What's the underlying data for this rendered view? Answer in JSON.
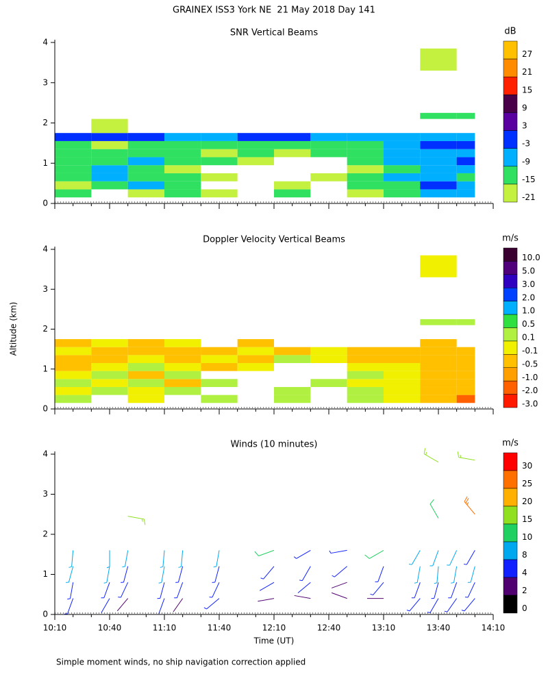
{
  "title": "GRAINEX ISS3 York NE  21 May 2018 Day 141",
  "y_label": "Altitude (km)",
  "footnote": "Simple moment winds, no ship navigation correction applied",
  "chart_data": [
    {
      "type": "heatmap",
      "title": "SNR Vertical Beams",
      "ylim": [
        0,
        4
      ],
      "yticks": [
        0,
        1,
        2,
        3,
        4
      ],
      "x_edges": [
        "10:10",
        "10:30",
        "10:50",
        "11:10",
        "11:30",
        "11:50",
        "12:10",
        "12:30",
        "12:50",
        "13:10",
        "13:30",
        "13:50",
        "14:00"
      ],
      "y_edges": [
        0.15,
        0.35,
        0.55,
        0.75,
        0.95,
        1.15,
        1.35,
        1.55,
        1.75,
        2.1,
        2.25,
        3.3,
        3.85
      ],
      "z": [
        [
          -15,
          null,
          -18,
          -15,
          -18,
          null,
          -15,
          null,
          -18,
          -15,
          -9,
          -9
        ],
        [
          -18,
          -12,
          -9,
          -15,
          null,
          null,
          -18,
          null,
          -15,
          -12,
          -3,
          -9
        ],
        [
          -15,
          -9,
          -12,
          -15,
          -18,
          null,
          null,
          -18,
          -15,
          -9,
          -9,
          -12
        ],
        [
          -12,
          -9,
          -15,
          -18,
          null,
          null,
          null,
          null,
          -18,
          -12,
          -9,
          -9
        ],
        [
          -15,
          -12,
          -9,
          -12,
          -15,
          -18,
          null,
          null,
          -15,
          -9,
          -9,
          -3
        ],
        [
          -12,
          -15,
          -12,
          -15,
          -18,
          -15,
          -18,
          -15,
          -12,
          -9,
          -9,
          -9
        ],
        [
          -15,
          -18,
          -15,
          -12,
          -12,
          -15,
          -12,
          -15,
          -12,
          -9,
          -3,
          -3
        ],
        [
          -3,
          -3,
          -3,
          -9,
          -9,
          -3,
          -3,
          -9,
          -9,
          -9,
          -9,
          -9
        ],
        [
          null,
          -21,
          null,
          null,
          null,
          null,
          null,
          null,
          null,
          null,
          null,
          null
        ],
        [
          null,
          null,
          null,
          null,
          null,
          null,
          null,
          null,
          null,
          null,
          -15,
          -15
        ],
        [
          null,
          null,
          null,
          null,
          null,
          null,
          null,
          null,
          null,
          null,
          null,
          null
        ],
        [
          null,
          null,
          null,
          null,
          null,
          null,
          null,
          null,
          null,
          null,
          -18,
          null
        ]
      ],
      "colorbar": {
        "label": "dB",
        "ticks": [
          27,
          21,
          15,
          9,
          3,
          -3,
          -9,
          -15,
          -21
        ],
        "colors": [
          "#ffc000",
          "#ff8c00",
          "#ff2000",
          "#4a0048",
          "#5a00a0",
          "#0030ff",
          "#00b0ff",
          "#30e060",
          "#c4f040"
        ]
      }
    },
    {
      "type": "heatmap",
      "title": "Doppler Velocity Vertical Beams",
      "ylim": [
        0,
        4
      ],
      "yticks": [
        0,
        1,
        2,
        3,
        4
      ],
      "x_edges": [
        "10:10",
        "10:30",
        "10:50",
        "11:10",
        "11:30",
        "11:50",
        "12:10",
        "12:30",
        "12:50",
        "13:10",
        "13:30",
        "13:50",
        "14:00"
      ],
      "y_edges": [
        0.15,
        0.35,
        0.55,
        0.75,
        0.95,
        1.15,
        1.35,
        1.55,
        1.75,
        2.1,
        2.25,
        3.3,
        3.85
      ],
      "z": [
        [
          0.1,
          null,
          -0.1,
          null,
          0.1,
          null,
          0.1,
          null,
          0.1,
          -0.1,
          -0.5,
          -1.5
        ],
        [
          -0.1,
          0.1,
          -0.1,
          0.1,
          null,
          null,
          0.1,
          null,
          0.1,
          -0.1,
          -0.5,
          -0.5
        ],
        [
          0.1,
          -0.1,
          0.1,
          -0.3,
          0.1,
          null,
          null,
          0.1,
          -0.1,
          -0.1,
          -0.5,
          -0.5
        ],
        [
          -0.1,
          0.1,
          -0.3,
          0.1,
          null,
          null,
          null,
          null,
          0.1,
          -0.1,
          -0.3,
          -0.5
        ],
        [
          -0.3,
          -0.1,
          0.1,
          -0.1,
          -0.3,
          -0.1,
          null,
          null,
          -0.1,
          -0.1,
          -0.5,
          -0.3
        ],
        [
          -0.3,
          -0.5,
          -0.1,
          -0.3,
          -0.1,
          -0.3,
          0.1,
          -0.1,
          -0.3,
          -0.3,
          -0.5,
          -0.5
        ],
        [
          -0.1,
          -0.3,
          -0.5,
          -0.3,
          -0.3,
          -0.1,
          -0.3,
          -0.1,
          -0.3,
          -0.5,
          -0.5,
          -0.3
        ],
        [
          -0.3,
          -0.1,
          -0.3,
          -0.1,
          null,
          -0.3,
          null,
          null,
          null,
          null,
          -0.5,
          null
        ],
        [
          null,
          null,
          null,
          null,
          null,
          null,
          null,
          null,
          null,
          null,
          null,
          null
        ],
        [
          null,
          null,
          null,
          null,
          null,
          null,
          null,
          null,
          null,
          null,
          0.1,
          0.1
        ],
        [
          null,
          null,
          null,
          null,
          null,
          null,
          null,
          null,
          null,
          null,
          null,
          null
        ],
        [
          null,
          null,
          null,
          null,
          null,
          null,
          null,
          null,
          null,
          null,
          -0.1,
          null
        ]
      ],
      "colorbar": {
        "label": "m/s",
        "ticks": [
          {
            "value": 10,
            "label": "10.0"
          },
          {
            "value": 5,
            "label": "5.0"
          },
          {
            "value": 3,
            "label": "3.0"
          },
          {
            "value": 2,
            "label": "2.0"
          },
          {
            "value": 1,
            "label": "1.0"
          },
          {
            "value": 0.5,
            "label": "0.5"
          },
          {
            "value": 0.1,
            "label": "0.1"
          },
          {
            "value": -0.1,
            "label": "-0.1"
          },
          {
            "value": -0.5,
            "label": "-0.5"
          },
          {
            "value": -1,
            "label": "-1.0"
          },
          {
            "value": -2,
            "label": "-2.0"
          },
          {
            "value": -3,
            "label": "-3.0"
          }
        ],
        "colors": [
          "#3a0030",
          "#50007a",
          "#3000c0",
          "#0040ff",
          "#00b0ff",
          "#30e040",
          "#b0f040",
          "#f0f000",
          "#ffc000",
          "#ffa000",
          "#ff6000",
          "#ff1a00"
        ]
      }
    },
    {
      "type": "barbs",
      "title": "Winds (10 minutes)",
      "ylim": [
        0,
        4
      ],
      "yticks": [
        0,
        1,
        2,
        3,
        4
      ],
      "xlim": [
        "10:10",
        "14:10"
      ],
      "xticks": [
        "10:10",
        "10:40",
        "11:10",
        "11:40",
        "12:10",
        "12:40",
        "13:10",
        "13:40",
        "14:10"
      ],
      "x_label": "Time (UT)",
      "x": [
        "10:20",
        "10:20",
        "10:20",
        "10:20",
        "10:40",
        "10:40",
        "10:40",
        "10:40",
        "10:50",
        "10:50",
        "10:50",
        "10:50",
        "11:10",
        "11:10",
        "11:10",
        "11:10",
        "11:20",
        "11:20",
        "11:20",
        "11:20",
        "11:40",
        "11:40",
        "11:40",
        "11:40",
        "12:10",
        "12:10",
        "12:10",
        "12:10",
        "12:30",
        "12:30",
        "12:30",
        "12:30",
        "12:50",
        "12:50",
        "12:50",
        "12:50",
        "13:10",
        "13:10",
        "13:10",
        "13:10",
        "13:30",
        "13:30",
        "13:30",
        "13:30",
        "13:40",
        "13:40",
        "13:40",
        "13:40",
        "13:50",
        "13:50",
        "13:50",
        "13:50",
        "14:00",
        "14:00",
        "14:00",
        "14:00",
        "10:50",
        "13:40",
        "13:40",
        "14:00",
        "14:00"
      ],
      "altitude": [
        0.4,
        0.8,
        1.2,
        1.6,
        0.4,
        0.8,
        1.2,
        1.6,
        0.4,
        0.8,
        1.2,
        1.6,
        0.4,
        0.8,
        1.2,
        1.6,
        0.4,
        0.8,
        1.2,
        1.6,
        0.4,
        0.8,
        1.2,
        1.6,
        0.4,
        0.8,
        1.2,
        1.6,
        0.4,
        0.8,
        1.2,
        1.6,
        0.4,
        0.8,
        1.2,
        1.6,
        0.4,
        0.8,
        1.2,
        1.6,
        0.4,
        0.8,
        1.2,
        1.6,
        0.4,
        0.8,
        1.2,
        1.6,
        0.4,
        0.8,
        1.2,
        1.6,
        0.4,
        0.8,
        1.2,
        1.6,
        2.45,
        3.8,
        2.4,
        3.85,
        2.5
      ],
      "speed": [
        5,
        7,
        8,
        9,
        4,
        6,
        8,
        9,
        3,
        6,
        7,
        8,
        4,
        7,
        8,
        9,
        3,
        6,
        7,
        8,
        5,
        6,
        7,
        9,
        2,
        4,
        5,
        11,
        3,
        4,
        6,
        5,
        2,
        3,
        5,
        6,
        3,
        5,
        6,
        12,
        6,
        7,
        8,
        9,
        6,
        7,
        8,
        8,
        5,
        7,
        8,
        9,
        6,
        7,
        8,
        7,
        16,
        18,
        11,
        15,
        26
      ],
      "direction": [
        200,
        190,
        195,
        185,
        210,
        200,
        190,
        180,
        220,
        205,
        195,
        190,
        200,
        195,
        190,
        185,
        215,
        200,
        195,
        185,
        230,
        205,
        195,
        190,
        260,
        240,
        220,
        250,
        280,
        230,
        210,
        240,
        290,
        250,
        230,
        260,
        270,
        220,
        200,
        240,
        220,
        200,
        190,
        210,
        210,
        195,
        185,
        200,
        215,
        200,
        190,
        205,
        220,
        205,
        195,
        210,
        100,
        300,
        330,
        280,
        320
      ],
      "colorbar": {
        "label": "m/s",
        "ticks": [
          30,
          25,
          20,
          15,
          10,
          8,
          4,
          2,
          0
        ],
        "colors": [
          "#ff0000",
          "#ff7000",
          "#ffb000",
          "#90e020",
          "#20d060",
          "#00a8f0",
          "#1020ff",
          "#500070",
          "#000000"
        ]
      }
    }
  ]
}
